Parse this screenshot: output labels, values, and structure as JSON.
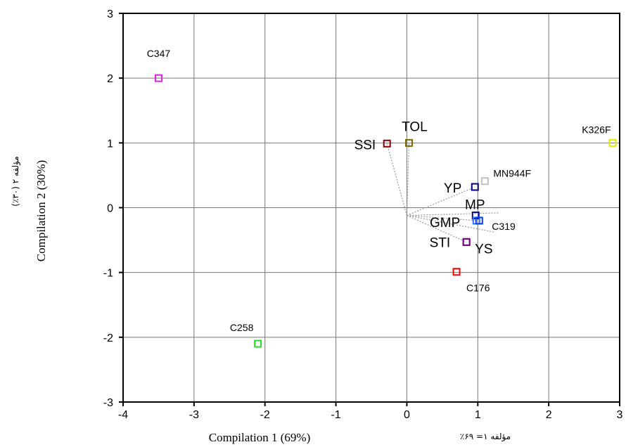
{
  "chart_data": {
    "type": "scatter",
    "xlabel": "Compilation 1 (69%)",
    "xlabel_alt": "مؤلفه ۱= ۶۹٪",
    "ylabel": "Compilation 2 (30%)",
    "ylabel_alt": "مؤلفه ۲ (۳۰٪)",
    "xlim": [
      -4,
      3
    ],
    "ylim": [
      -3,
      3
    ],
    "xticks": [
      -4,
      -3,
      -2,
      -1,
      0,
      1,
      2,
      3
    ],
    "yticks": [
      -3,
      -2,
      -1,
      0,
      1,
      2,
      3
    ],
    "grid": true,
    "points": [
      {
        "label": "C347",
        "x": -3.5,
        "y": 2.0,
        "color": "#e020e0"
      },
      {
        "label": "SSI",
        "x": -0.28,
        "y": 0.99,
        "color": "#8b0000"
      },
      {
        "label": "TOL",
        "x": 0.03,
        "y": 1.0,
        "color": "#7a6a00"
      },
      {
        "label": "K326F",
        "x": 2.9,
        "y": 1.0,
        "color": "#e8e800"
      },
      {
        "label": "MN944F",
        "x": 1.1,
        "y": 0.41,
        "color": "#c0c0c0"
      },
      {
        "label": "YP",
        "x": 0.96,
        "y": 0.32,
        "color": "#000080"
      },
      {
        "label": "MP",
        "x": 0.97,
        "y": -0.12,
        "color": "#0000a0"
      },
      {
        "label": "GMP",
        "x": 0.98,
        "y": -0.2,
        "color": "#3070ff"
      },
      {
        "label": "C319",
        "x": 1.02,
        "y": -0.2,
        "color": "#0040ff"
      },
      {
        "label": "STI",
        "x": 0.84,
        "y": -0.53,
        "color": "#800080"
      },
      {
        "label": "YS",
        "x": 0.84,
        "y": -0.53,
        "color": "#800080"
      },
      {
        "label": "C176",
        "x": 0.7,
        "y": -0.99,
        "color": "#ff0000"
      },
      {
        "label": "C258",
        "x": -2.1,
        "y": -2.1,
        "color": "#20e020"
      }
    ],
    "vectors": [
      {
        "label": "SSI",
        "x": -0.28,
        "y": 0.99
      },
      {
        "label": "TOL",
        "x": 0.03,
        "y": 1.0
      },
      {
        "label": "YP",
        "x": 0.96,
        "y": 0.32
      },
      {
        "label": "MP",
        "x": 1.3,
        "y": -0.08
      },
      {
        "label": "GMP",
        "x": 1.0,
        "y": -0.2
      },
      {
        "label": "STI",
        "x": 1.25,
        "y": -0.38
      },
      {
        "label": "YS",
        "x": 0.84,
        "y": -0.53
      }
    ],
    "vector_origin": [
      0.0,
      -0.12
    ]
  }
}
